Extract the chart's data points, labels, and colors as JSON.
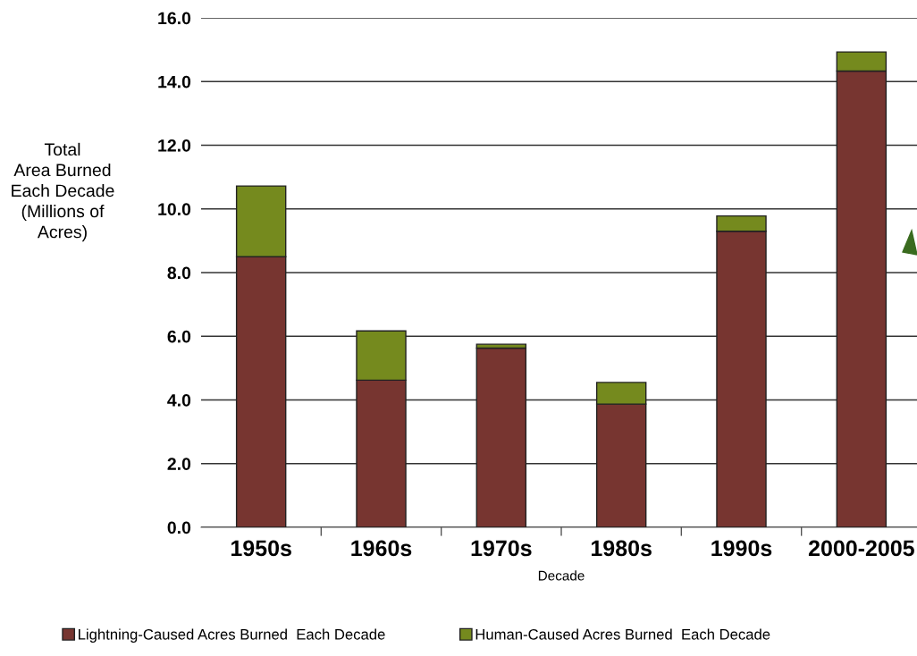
{
  "chart_data": {
    "type": "bar",
    "stacked": true,
    "xlabel": "Decade",
    "ylabel": "Total\nArea Burned\nEach Decade\n(Millions of\nAcres)",
    "categories": [
      "1950s",
      "1960s",
      "1970s",
      "1980s",
      "1990s",
      "2000-2005"
    ],
    "series": [
      {
        "name": "Lightning-Caused Acres Burned  Each Decade",
        "color": "#773530",
        "values": [
          8.5,
          4.62,
          5.63,
          3.87,
          9.3,
          14.33
        ]
      },
      {
        "name": "Human-Caused Acres Burned  Each Decade",
        "color": "#758a1e",
        "values": [
          2.22,
          1.55,
          0.12,
          0.68,
          0.48,
          0.6
        ]
      }
    ],
    "ylim": [
      0,
      16
    ],
    "yticks": [
      {
        "value": 0,
        "label": "0.0"
      },
      {
        "value": 2,
        "label": "2.0"
      },
      {
        "value": 4,
        "label": "4.0"
      },
      {
        "value": 6,
        "label": "6.0"
      },
      {
        "value": 8,
        "label": "8.0"
      },
      {
        "value": 10,
        "label": "10.0"
      },
      {
        "value": 12,
        "label": "12.0"
      },
      {
        "value": 14,
        "label": "14.0"
      },
      {
        "value": 16,
        "label": "16.0"
      }
    ],
    "grid": "y",
    "legend": "bottom"
  }
}
